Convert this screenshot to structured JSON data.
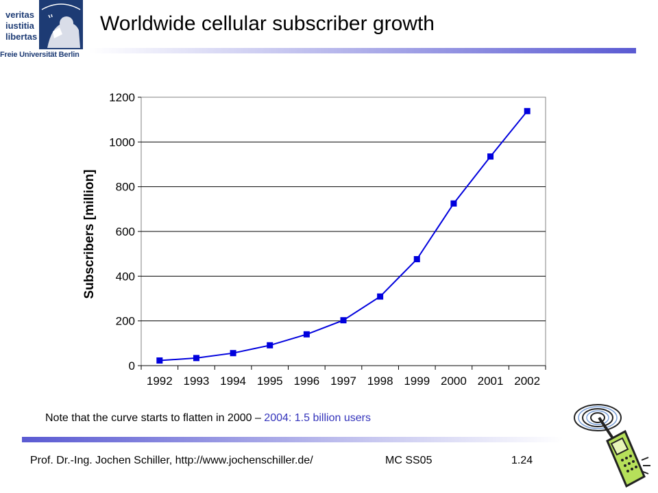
{
  "logo": {
    "words": [
      "veritas",
      "iustitia",
      "libertas"
    ],
    "university": "Freie Universität Berlin",
    "seal_text": "LIBERTAS"
  },
  "slide": {
    "title": "Worldwide cellular subscriber growth",
    "note_main": "Note that the curve starts to flatten in 2000 – ",
    "note_highlight": "2004: 1.5 billion users"
  },
  "footer": {
    "author": "Prof. Dr.-Ing. Jochen Schiller, http://www.jochenschiller.de/",
    "course": "MC SS05",
    "page": "1.24"
  },
  "colors": {
    "series": "#0000dd",
    "highlight": "#3333bb",
    "logo": "#1d3b74"
  },
  "chart_data": {
    "type": "line",
    "categories": [
      "1992",
      "1993",
      "1994",
      "1995",
      "1996",
      "1997",
      "1998",
      "1999",
      "2000",
      "2001",
      "2002"
    ],
    "series": [
      {
        "values": [
          23,
          34,
          56,
          91,
          140,
          203,
          309,
          476,
          725,
          935,
          1138
        ]
      }
    ],
    "ylabel": "Subscribers [million]",
    "xlabel": "",
    "ylim": [
      0,
      1200
    ],
    "yticks": [
      0,
      200,
      400,
      600,
      800,
      1000,
      1200
    ],
    "grid": true,
    "legend": "none"
  }
}
